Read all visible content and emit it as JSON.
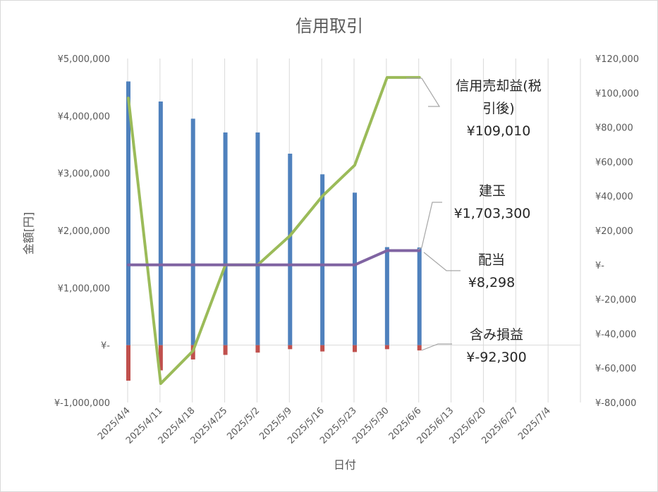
{
  "chart_data": {
    "type": "combo",
    "title": "信用取引",
    "xlabel": "日付",
    "ylabel": "金額[円]",
    "x": [
      "2025/4/4",
      "2025/4/11",
      "2025/4/18",
      "2025/4/25",
      "2025/5/2",
      "2025/5/9",
      "2025/5/16",
      "2025/5/23",
      "2025/5/30",
      "2025/6/6",
      "2025/6/13",
      "2025/6/20",
      "2025/6/27",
      "2025/7/4"
    ],
    "ylim": [
      -1000000,
      5000000
    ],
    "y2lim": [
      -80000,
      120000
    ],
    "y_ticks": [
      {
        "value": 5000000,
        "label": "¥5,000,000"
      },
      {
        "value": 4000000,
        "label": "¥4,000,000"
      },
      {
        "value": 3000000,
        "label": "¥3,000,000"
      },
      {
        "value": 2000000,
        "label": "¥2,000,000"
      },
      {
        "value": 1000000,
        "label": "¥1,000,000"
      },
      {
        "value": 0,
        "label": "¥-"
      },
      {
        "value": -1000000,
        "label": "¥-1,000,000"
      }
    ],
    "y2_ticks": [
      {
        "value": 120000,
        "label": "¥120,000"
      },
      {
        "value": 100000,
        "label": "¥100,000"
      },
      {
        "value": 80000,
        "label": "¥80,000"
      },
      {
        "value": 60000,
        "label": "¥60,000"
      },
      {
        "value": 40000,
        "label": "¥40,000"
      },
      {
        "value": 20000,
        "label": "¥20,000"
      },
      {
        "value": 0,
        "label": "¥-"
      },
      {
        "value": -20000,
        "label": "¥-20,000"
      },
      {
        "value": -40000,
        "label": "¥-40,000"
      },
      {
        "value": -60000,
        "label": "¥-60,000"
      },
      {
        "value": -80000,
        "label": "¥-80,000"
      }
    ],
    "grid": "vertical",
    "series": [
      {
        "name": "建玉",
        "type": "bar",
        "axis": "left",
        "color": "#4f81bd",
        "values": [
          4600000,
          4250000,
          3950000,
          3710000,
          3710000,
          3340000,
          2980000,
          2660000,
          1710000,
          1703300,
          null,
          null,
          null,
          null
        ]
      },
      {
        "name": "含み損益",
        "type": "bar",
        "axis": "left",
        "color": "#c0504d",
        "values": [
          -620000,
          -440000,
          -250000,
          -170000,
          -130000,
          -70000,
          -110000,
          -120000,
          -70000,
          -92300,
          null,
          null,
          null,
          null
        ]
      },
      {
        "name": "信用売却益(税引後)",
        "type": "line",
        "axis": "right",
        "color": "#9bbb59",
        "values": [
          97000,
          -69000,
          -50000,
          0,
          0,
          17000,
          40000,
          58000,
          109010,
          109010,
          null,
          null,
          null,
          null
        ]
      },
      {
        "name": "配当",
        "type": "line",
        "axis": "right",
        "color": "#8064a2",
        "values": [
          0,
          0,
          0,
          0,
          0,
          0,
          0,
          0,
          8298,
          8298,
          null,
          null,
          null,
          null
        ]
      }
    ],
    "callouts": [
      {
        "line1": "信用売却益(税",
        "line2": "引後)",
        "value": "¥109,010"
      },
      {
        "line1": "建玉",
        "value": "¥1,703,300"
      },
      {
        "line1": "配当",
        "value": "¥8,298"
      },
      {
        "line1": "含み損益",
        "value": "¥-92,300"
      }
    ]
  }
}
